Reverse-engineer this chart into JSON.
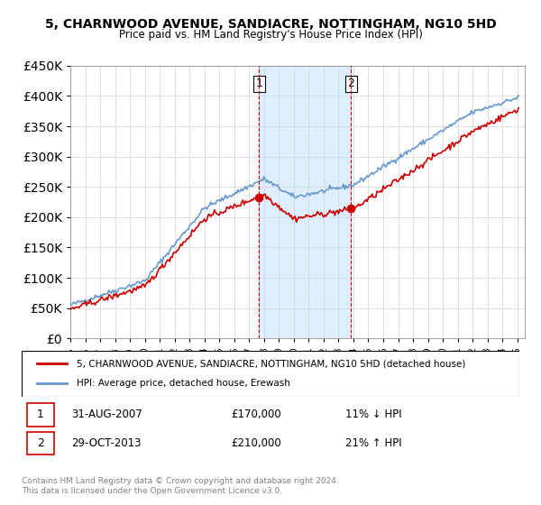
{
  "title": "5, CHARNWOOD AVENUE, SANDIACRE, NOTTINGHAM, NG10 5HD",
  "subtitle": "Price paid vs. HM Land Registry's House Price Index (HPI)",
  "legend_line1": "5, CHARNWOOD AVENUE, SANDIACRE, NOTTINGHAM, NG10 5HD (detached house)",
  "legend_line2": "HPI: Average price, detached house, Erewash",
  "sale1_label": "1",
  "sale1_date": "31-AUG-2007",
  "sale1_price": "£170,000",
  "sale1_hpi": "11% ↓ HPI",
  "sale2_label": "2",
  "sale2_date": "29-OCT-2013",
  "sale2_price": "£210,000",
  "sale2_hpi": "21% ↑ HPI",
  "footer": "Contains HM Land Registry data © Crown copyright and database right 2024.\nThis data is licensed under the Open Government Licence v3.0.",
  "sale1_year": 2007.67,
  "sale2_year": 2013.83,
  "hpi_color": "#6699cc",
  "price_color": "#cc0000",
  "sale_marker_color": "#cc0000",
  "shaded_color": "#ddeeff",
  "ylim": [
    0,
    450000
  ],
  "yticks": [
    0,
    50000,
    100000,
    150000,
    200000,
    250000,
    300000,
    350000,
    400000,
    450000
  ],
  "xlim_start": 1995,
  "xlim_end": 2025.5
}
